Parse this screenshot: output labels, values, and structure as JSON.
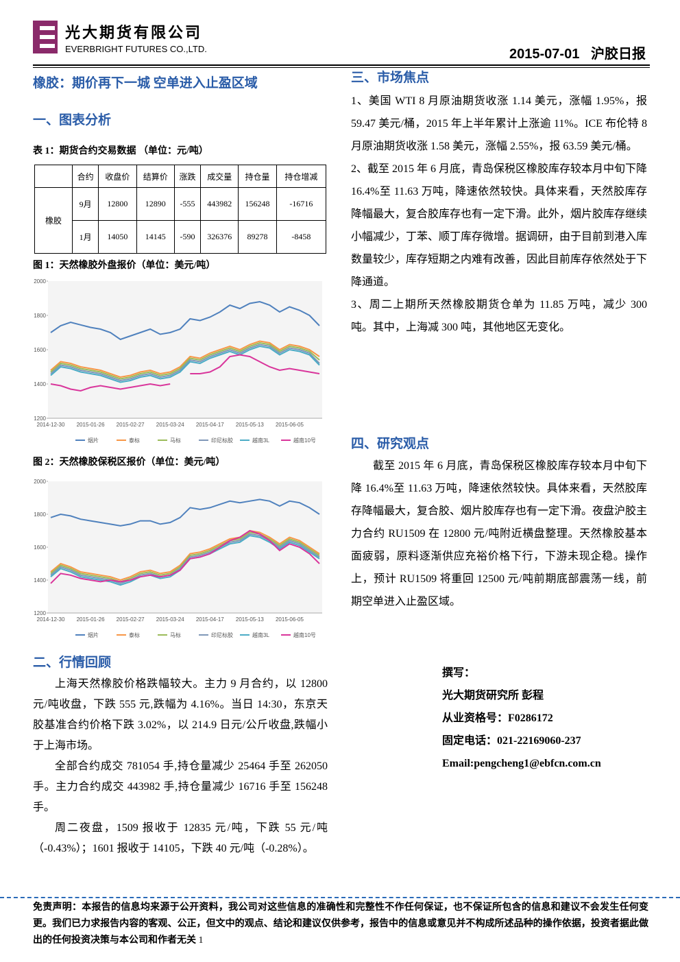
{
  "header": {
    "company_cn": "光大期货有限公司",
    "company_en": "EVERBRIGHT FUTURES CO.,LTD.",
    "date": "2015-07-01",
    "report": "沪胶日报"
  },
  "headline": "橡胶：期价再下一城 空单进入止盈区域",
  "section1": {
    "title": "一、图表分析",
    "table_caption": "表 1：期货合约交易数据 （单位：元/吨）"
  },
  "table": {
    "header": [
      "合约",
      "收盘价",
      "结算价",
      "涨跌",
      "成交量",
      "持仓量",
      "持仓增减"
    ],
    "group": "橡胶",
    "rows": [
      [
        "9月",
        "12800",
        "12890",
        "-555",
        "443982",
        "156248",
        "-16716"
      ],
      [
        "1月",
        "14050",
        "14145",
        "-590",
        "326376",
        "89278",
        "-8458"
      ]
    ]
  },
  "chart_data": [
    {
      "type": "line",
      "title": "图 1：天然橡胶外盘报价（单位：美元/吨）",
      "categories": [
        "2014-12-30",
        null,
        null,
        null,
        "2015-01-26",
        null,
        null,
        null,
        "2015-02-27",
        null,
        null,
        null,
        "2015-03-24",
        null,
        null,
        null,
        "2015-04-17",
        null,
        null,
        null,
        "2015-05-13",
        null,
        null,
        null,
        "2015-06-05",
        null,
        null,
        null
      ],
      "ylim": [
        1200,
        2000
      ],
      "yticks": [
        1200,
        1400,
        1600,
        1800,
        2000
      ],
      "legend": "bottom",
      "series": [
        {
          "name": "烟片",
          "color": "#4f81bd",
          "values": [
            1700,
            1740,
            1760,
            1745,
            1730,
            1720,
            1700,
            1660,
            1680,
            1700,
            1720,
            1690,
            1700,
            1720,
            1780,
            1770,
            1790,
            1820,
            1860,
            1840,
            1870,
            1880,
            1860,
            1820,
            1850,
            1830,
            1800,
            1740
          ]
        },
        {
          "name": "泰标",
          "color": "#f79646",
          "values": [
            1480,
            1530,
            1520,
            1500,
            1490,
            1480,
            1460,
            1440,
            1450,
            1470,
            1480,
            1460,
            1470,
            1500,
            1560,
            1550,
            1580,
            1600,
            1620,
            1600,
            1630,
            1650,
            1640,
            1600,
            1630,
            1620,
            1600,
            1560
          ]
        },
        {
          "name": "马标",
          "color": "#9bbb59",
          "values": [
            1470,
            1520,
            1510,
            1490,
            1480,
            1470,
            1450,
            1430,
            1440,
            1460,
            1470,
            1450,
            1460,
            1490,
            1550,
            1540,
            1570,
            1590,
            1610,
            1590,
            1620,
            1640,
            1630,
            1590,
            1620,
            1610,
            1590,
            1540
          ]
        },
        {
          "name": "印尼标胶",
          "color": "#7f97b8",
          "values": [
            1460,
            1510,
            1500,
            1480,
            1470,
            1460,
            1440,
            1420,
            1430,
            1450,
            1460,
            1440,
            1450,
            1480,
            1540,
            1530,
            1560,
            1580,
            1600,
            1580,
            1610,
            1630,
            1620,
            1580,
            1610,
            1600,
            1580,
            1520
          ]
        },
        {
          "name": "越南3L",
          "color": "#4bacc6",
          "values": [
            1450,
            1500,
            1490,
            1470,
            1460,
            1450,
            1430,
            1410,
            1420,
            1440,
            1450,
            1430,
            1440,
            1470,
            1530,
            1520,
            1550,
            1570,
            1590,
            1570,
            1600,
            1620,
            1610,
            1570,
            1600,
            1590,
            1570,
            1510
          ]
        },
        {
          "name": "越南10号",
          "color": "#d9359b",
          "values": [
            1400,
            1390,
            1370,
            1360,
            1380,
            1390,
            1380,
            1370,
            1380,
            1390,
            1400,
            1390,
            1400,
            null,
            1460,
            1460,
            1470,
            1500,
            1560,
            1570,
            1560,
            1530,
            1500,
            1480,
            1490,
            1480,
            1470,
            1460
          ]
        }
      ]
    },
    {
      "type": "line",
      "title": "图 2：天然橡胶保税区报价（单位：美元/吨）",
      "categories": [
        "2014-12-30",
        null,
        null,
        null,
        "2015-01-26",
        null,
        null,
        null,
        "2015-02-27",
        null,
        null,
        null,
        "2015-03-24",
        null,
        null,
        null,
        "2015-04-17",
        null,
        null,
        null,
        "2015-05-13",
        null,
        null,
        null,
        "2015-06-05",
        null,
        null,
        null
      ],
      "ylim": [
        1200,
        2000
      ],
      "yticks": [
        1200,
        1400,
        1600,
        1800,
        2000
      ],
      "legend": "bottom",
      "series": [
        {
          "name": "烟片",
          "color": "#4f81bd",
          "values": [
            1780,
            1800,
            1790,
            1770,
            1760,
            1750,
            1740,
            1730,
            1740,
            1760,
            1760,
            1740,
            1750,
            1780,
            1840,
            1830,
            1840,
            1860,
            1880,
            1870,
            1880,
            1890,
            1880,
            1850,
            1880,
            1870,
            1840,
            1800
          ]
        },
        {
          "name": "泰标",
          "color": "#f79646",
          "values": [
            1450,
            1500,
            1480,
            1450,
            1440,
            1430,
            1420,
            1400,
            1420,
            1450,
            1460,
            1440,
            1450,
            1490,
            1560,
            1570,
            1590,
            1620,
            1650,
            1660,
            1700,
            1690,
            1660,
            1620,
            1660,
            1640,
            1600,
            1560
          ]
        },
        {
          "name": "马标",
          "color": "#9bbb59",
          "values": [
            1440,
            1490,
            1470,
            1440,
            1430,
            1420,
            1410,
            1390,
            1410,
            1440,
            1450,
            1430,
            1440,
            1480,
            1550,
            1560,
            1580,
            1610,
            1640,
            1650,
            1690,
            1680,
            1650,
            1610,
            1650,
            1630,
            1590,
            1550
          ]
        },
        {
          "name": "印尼标胶",
          "color": "#7f97b8",
          "values": [
            1430,
            1480,
            1460,
            1430,
            1420,
            1410,
            1400,
            1380,
            1400,
            1430,
            1440,
            1420,
            1430,
            1470,
            1540,
            1550,
            1570,
            1600,
            1630,
            1640,
            1680,
            1670,
            1640,
            1600,
            1640,
            1620,
            1580,
            1540
          ]
        },
        {
          "name": "越南3L",
          "color": "#4bacc6",
          "values": [
            1420,
            1470,
            1450,
            1420,
            1410,
            1400,
            1390,
            1370,
            1390,
            1420,
            1430,
            1410,
            1420,
            1460,
            1530,
            1540,
            1560,
            1590,
            1620,
            1630,
            1670,
            1660,
            1630,
            1590,
            1630,
            1610,
            1570,
            1530
          ]
        },
        {
          "name": "越南10号",
          "color": "#d9359b",
          "values": [
            1380,
            1440,
            1430,
            1410,
            1400,
            1390,
            1400,
            1390,
            1400,
            1420,
            1430,
            1420,
            1430,
            1460,
            1530,
            1540,
            1560,
            1600,
            1640,
            1660,
            1700,
            1680,
            1640,
            1580,
            1620,
            1600,
            1560,
            1500
          ]
        }
      ]
    }
  ],
  "section2": {
    "title": "二、行情回顾",
    "paragraphs": [
      "上海天然橡胶价格跌幅较大。主力 9 月合约，以 12800 元/吨收盘，下跌 555 元,跌幅为 4.16%。当日 14:30，东京天胶基准合约价格下跌 3.02%，以 214.9 日元/公斤收盘,跌幅小于上海市场。",
      "全部合约成交 781054 手,持仓量减少 25464 手至 262050 手。主力合约成交 443982 手,持仓量减少 16716 手至 156248 手。",
      "周二夜盘，1509 报收于 12835 元/吨，下跌 55 元/吨（-0.43%）；1601 报收于 14105，下跌 40 元/吨（-0.28%）。"
    ]
  },
  "section3": {
    "title": "三、市场焦点",
    "paragraphs": [
      "1、美国 WTI 8 月原油期货收涨 1.14 美元，涨幅 1.95%，报 59.47 美元/桶，2015 年上半年累计上涨逾 11%。ICE 布伦特 8 月原油期货收涨 1.58 美元，涨幅 2.55%，报 63.59 美元/桶。",
      "2、截至 2015 年 6 月底，青岛保税区橡胶库存较本月中旬下降 16.4%至 11.63 万吨，降速依然较快。具体来看，天然胶库存降幅最大，复合胶库存也有一定下滑。此外，烟片胶库存继续小幅减少，丁苯、顺丁库存微增。据调研，由于目前到港入库数量较少，库存短期之内难有改善，因此目前库存依然处于下降通道。",
      "3、周二上期所天然橡胶期货仓单为 11.85 万吨，减少 300 吨。其中，上海减 300 吨，其他地区无变化。"
    ]
  },
  "section4": {
    "title": "四、研究观点",
    "paragraphs": [
      "截至 2015 年 6 月底，青岛保税区橡胶库存较本月中旬下降 16.4%至 11.63 万吨，降速依然较快。具体来看，天然胶库存降幅最大，复合胶、烟片胶库存也有一定下滑。夜盘沪胶主力合约 RU1509 在 12800 元/吨附近横盘整理。天然橡胶基本面疲弱，原料逐渐供应充裕价格下行，下游未现企稳。操作上，预计 RU1509 将重回 12500 元/吨前期底部震荡一线，前期空单进入止盈区域。"
    ]
  },
  "author": [
    "撰写：",
    "光大期货研究所 彭程",
    "从业资格号：F0286172",
    "固定电话：021-22169060-237",
    "Email:pengcheng1@ebfcn.com.cn"
  ],
  "footer": {
    "disclaimer": "免责声明：本报告的信息均来源于公开资料，我公司对这些信息的准确性和完整性不作任何保证，也不保证所包含的信息和建议不会发生任何变更。我们已力求报告内容的客观、公正，但文中的观点、结论和建议仅供参考，报告中的信息或意见并不构成所述品种的操作依据，投资者据此做出的任何投资决策与本公司和作者无关",
    "page": "1"
  }
}
